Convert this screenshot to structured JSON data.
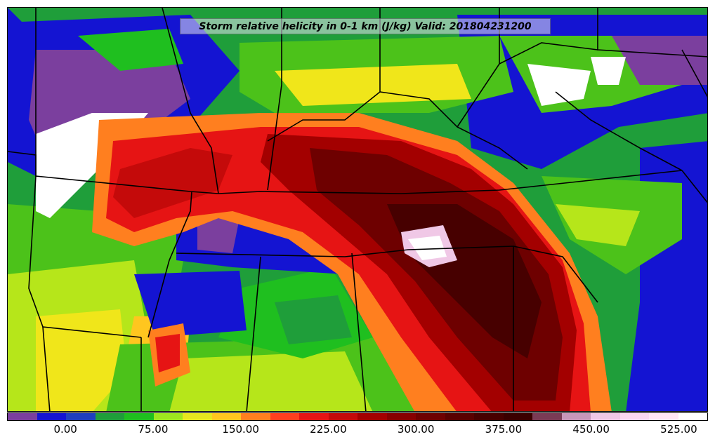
{
  "title": "Storm relative helicity in 0-1 km (J/kg) Valid: 201804231200",
  "colorbar": {
    "colors": [
      "#7b3f9e",
      "#1414d2",
      "#1f3fbf",
      "#1f9e3a",
      "#1fbf1f",
      "#9ee61f",
      "#e6e61f",
      "#ffc61f",
      "#ff7f1f",
      "#ff3f1f",
      "#e61414",
      "#c40a0a",
      "#a30000",
      "#870000",
      "#6e0000",
      "#590000",
      "#470000",
      "#3a0000",
      "#7a3b55",
      "#c896b9",
      "#f0c8e6",
      "#fad7f0",
      "#ffe6f5",
      "#ffffff"
    ],
    "ticks": [
      "0.00",
      "75.00",
      "150.00",
      "225.00",
      "300.00",
      "375.00",
      "450.00",
      "525.00"
    ]
  }
}
